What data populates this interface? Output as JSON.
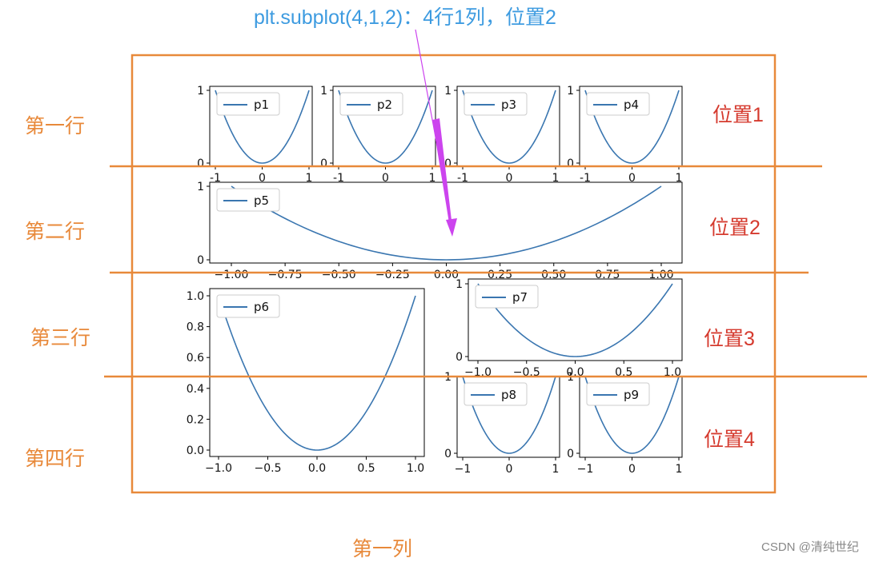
{
  "header": {
    "title": "plt.subplot(4,1,2)：4行1列，位置2"
  },
  "annotations": {
    "rows": [
      "第一行",
      "第二行",
      "第三行",
      "第四行"
    ],
    "positions": [
      "位置1",
      "位置2",
      "位置3",
      "位置4"
    ],
    "column": "第一列",
    "watermark": "CSDN @清纯世纪"
  },
  "colors": {
    "line": "#3a76b0",
    "frame": "#e8893a",
    "arrow": "#cc44ee",
    "title": "#3d9be0",
    "position_label": "#d53a2e"
  },
  "chart_data": [
    {
      "type": "line",
      "name": "p1",
      "legend": "p1",
      "x_range": [
        -1,
        1
      ],
      "function": "y = x^2",
      "x_ticks": [
        "-1",
        "0",
        "1"
      ],
      "y_ticks": [
        "0",
        "1"
      ]
    },
    {
      "type": "line",
      "name": "p2",
      "legend": "p2",
      "x_range": [
        -1,
        1
      ],
      "function": "y = x^2",
      "x_ticks": [
        "-1",
        "0",
        "1"
      ],
      "y_ticks": [
        "0",
        "1"
      ]
    },
    {
      "type": "line",
      "name": "p3",
      "legend": "p3",
      "x_range": [
        -1,
        1
      ],
      "function": "y = x^2",
      "x_ticks": [
        "-1",
        "0",
        "1"
      ],
      "y_ticks": [
        "0",
        "1"
      ]
    },
    {
      "type": "line",
      "name": "p4",
      "legend": "p4",
      "x_range": [
        -1,
        1
      ],
      "function": "y = x^2",
      "x_ticks": [
        "-1",
        "0",
        "1"
      ],
      "y_ticks": [
        "0",
        "1"
      ]
    },
    {
      "type": "line",
      "name": "p5",
      "legend": "p5",
      "x_range": [
        -1,
        1
      ],
      "function": "y = x^2",
      "x_ticks": [
        "−1.00",
        "−0.75",
        "−0.50",
        "−0.25",
        "0.00",
        "0.25",
        "0.50",
        "0.75",
        "1.00"
      ],
      "y_ticks": [
        "0",
        "1"
      ]
    },
    {
      "type": "line",
      "name": "p6",
      "legend": "p6",
      "x_range": [
        -1,
        1
      ],
      "function": "y = x^2",
      "x_ticks": [
        "−1.0",
        "−0.5",
        "0.0",
        "0.5",
        "1.0"
      ],
      "y_ticks": [
        "0.0",
        "0.2",
        "0.4",
        "0.6",
        "0.8",
        "1.0"
      ]
    },
    {
      "type": "line",
      "name": "p7",
      "legend": "p7",
      "x_range": [
        -1,
        1
      ],
      "function": "y = x^2",
      "x_ticks": [
        "−1.0",
        "−0.5",
        "0.0",
        "0.5",
        "1.0"
      ],
      "y_ticks": [
        "0",
        "1"
      ]
    },
    {
      "type": "line",
      "name": "p8",
      "legend": "p8",
      "x_range": [
        -1,
        1
      ],
      "function": "y = x^2",
      "x_ticks": [
        "−1",
        "0",
        "1"
      ],
      "y_ticks": [
        "0",
        "1"
      ]
    },
    {
      "type": "line",
      "name": "p9",
      "legend": "p9",
      "x_range": [
        -1,
        1
      ],
      "function": "y = x^2",
      "x_ticks": [
        "−1",
        "0",
        "1"
      ],
      "y_ticks": [
        "0",
        "1"
      ]
    }
  ]
}
